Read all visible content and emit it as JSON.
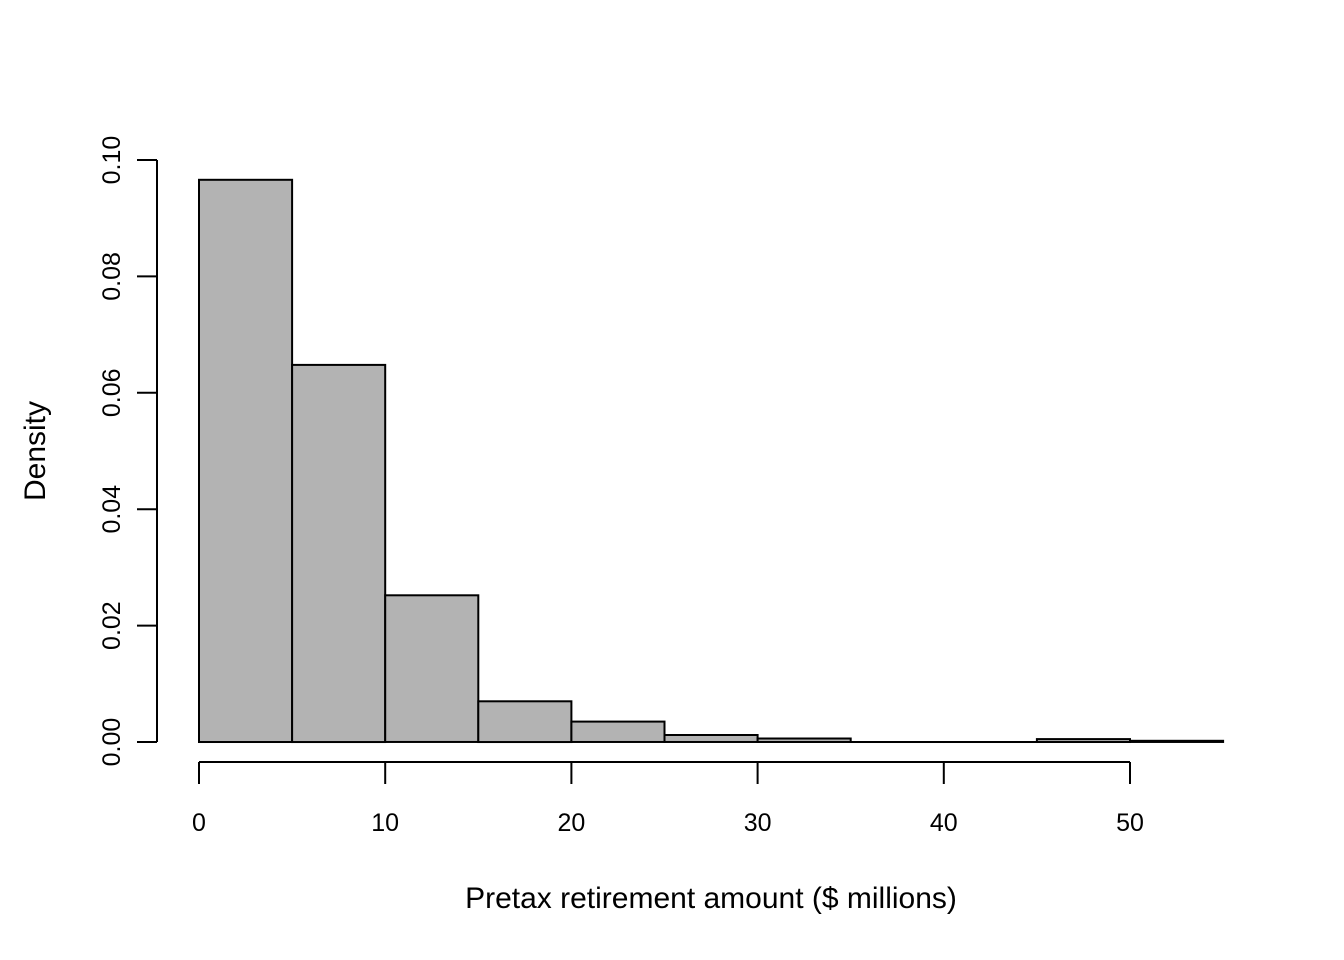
{
  "chart_data": {
    "type": "bar",
    "subtype": "histogram",
    "title": "",
    "xlabel": "Pretax retirement amount ($ millions)",
    "ylabel": "Density",
    "bin_edges": [
      0,
      5,
      10,
      15,
      20,
      25,
      30,
      35,
      40,
      45,
      50,
      55
    ],
    "densities": [
      0.0966,
      0.0648,
      0.0252,
      0.007,
      0.0035,
      0.0012,
      0.0006,
      0.0,
      0.0,
      0.0005,
      0.0002
    ],
    "x_ticks": [
      0,
      10,
      20,
      30,
      40,
      50
    ],
    "x_tick_labels": [
      "0",
      "10",
      "20",
      "30",
      "40",
      "50"
    ],
    "y_ticks": [
      0.0,
      0.02,
      0.04,
      0.06,
      0.08,
      0.1
    ],
    "y_tick_labels": [
      "0.00",
      "0.02",
      "0.04",
      "0.06",
      "0.08",
      "0.10"
    ],
    "xlim": [
      0,
      55
    ],
    "ylim": [
      0,
      0.1
    ],
    "grid": false,
    "legend_position": "none",
    "bar_fill_color": "#b3b3b3",
    "bar_stroke_color": "#000000",
    "axis_color": "#000000",
    "background_color": "#ffffff"
  }
}
